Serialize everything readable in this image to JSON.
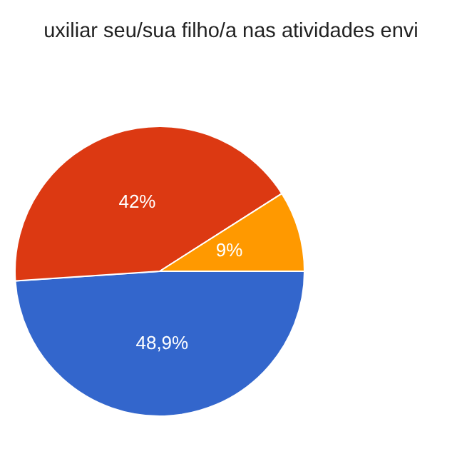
{
  "chart_data": {
    "type": "pie",
    "title": "uxiliar seu/sua filho/a nas atividades envi",
    "categories": [
      null,
      null,
      null
    ],
    "values": [
      48.9,
      42,
      9
    ],
    "colors": [
      "#3366cc",
      "#dc3912",
      "#ff9900"
    ],
    "value_labels": [
      "48,9%",
      "42%",
      "9%"
    ],
    "legend": false
  }
}
